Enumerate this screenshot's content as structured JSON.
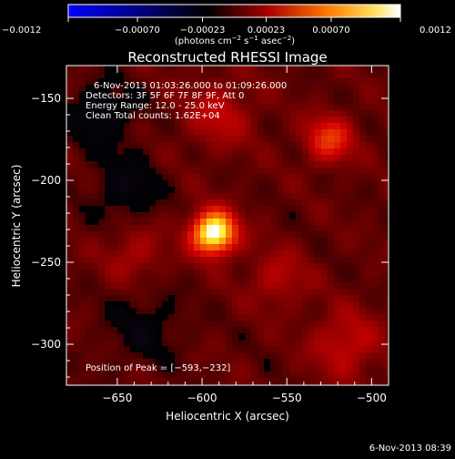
{
  "chart_data": {
    "type": "heatmap",
    "title": "Reconstructed RHESSI Image",
    "xlabel": "Heliocentric X (arcsec)",
    "ylabel": "Heliocentric Y (arcsec)",
    "xlim": [
      -680,
      -490
    ],
    "ylim": [
      -325,
      -130
    ],
    "x_ticks": [
      -650,
      -600,
      -550,
      -500
    ],
    "x_tick_labels": [
      "−650",
      "−600",
      "−550",
      "−500"
    ],
    "y_ticks": [
      -150,
      -200,
      -250,
      -300
    ],
    "y_tick_labels": [
      "−150",
      "−200",
      "−250",
      "−300"
    ],
    "colorbar": {
      "min": -0.0012,
      "max": 0.0012,
      "ticks": [
        -0.0012,
        -0.0007,
        -0.00023,
        0.00023,
        0.0007,
        0.0012
      ],
      "tick_labels": [
        "−0.0012",
        "−0.00070",
        "−0.00023",
        "0.00023",
        "0.00070",
        "0.0012"
      ],
      "unit_prefix": "(photons cm",
      "unit_sup1": "−2",
      "unit_mid": " s",
      "unit_sup2": "−1",
      "unit_mid2": " asec",
      "unit_sup3": "−2",
      "unit_suffix": ")"
    },
    "peak": {
      "x": -593,
      "y": -232
    },
    "sources": [
      {
        "x": -593,
        "y": -232,
        "amp": 1.0,
        "sigma": 9
      },
      {
        "x": -525,
        "y": -175,
        "amp": 0.4,
        "sigma": 10
      },
      {
        "x": -590,
        "y": -160,
        "amp": 0.22,
        "sigma": 14
      },
      {
        "x": -515,
        "y": -300,
        "amp": 0.25,
        "sigma": 14
      },
      {
        "x": -640,
        "y": -245,
        "amp": 0.18,
        "sigma": 12
      },
      {
        "x": -555,
        "y": -260,
        "amp": 0.2,
        "sigma": 12
      },
      {
        "x": -660,
        "y": -160,
        "amp": -0.2,
        "sigma": 14
      },
      {
        "x": -645,
        "y": -205,
        "amp": -0.18,
        "sigma": 14
      },
      {
        "x": -635,
        "y": -290,
        "amp": -0.15,
        "sigma": 16
      }
    ],
    "annotations": {
      "time_range": "6-Nov-2013 01:03:26.000 to 01:09:26.000",
      "detectors": "Detectors: 3F 5F 6F 7F 8F 9F, Att 0",
      "energy": "Energy Range: 12.0 - 25.0 keV",
      "clean": "Clean     Total counts: 1.62E+04",
      "peak_label": "Position of Peak = [−593,−232]"
    },
    "timestamp": "6-Nov-2013 08:39"
  }
}
